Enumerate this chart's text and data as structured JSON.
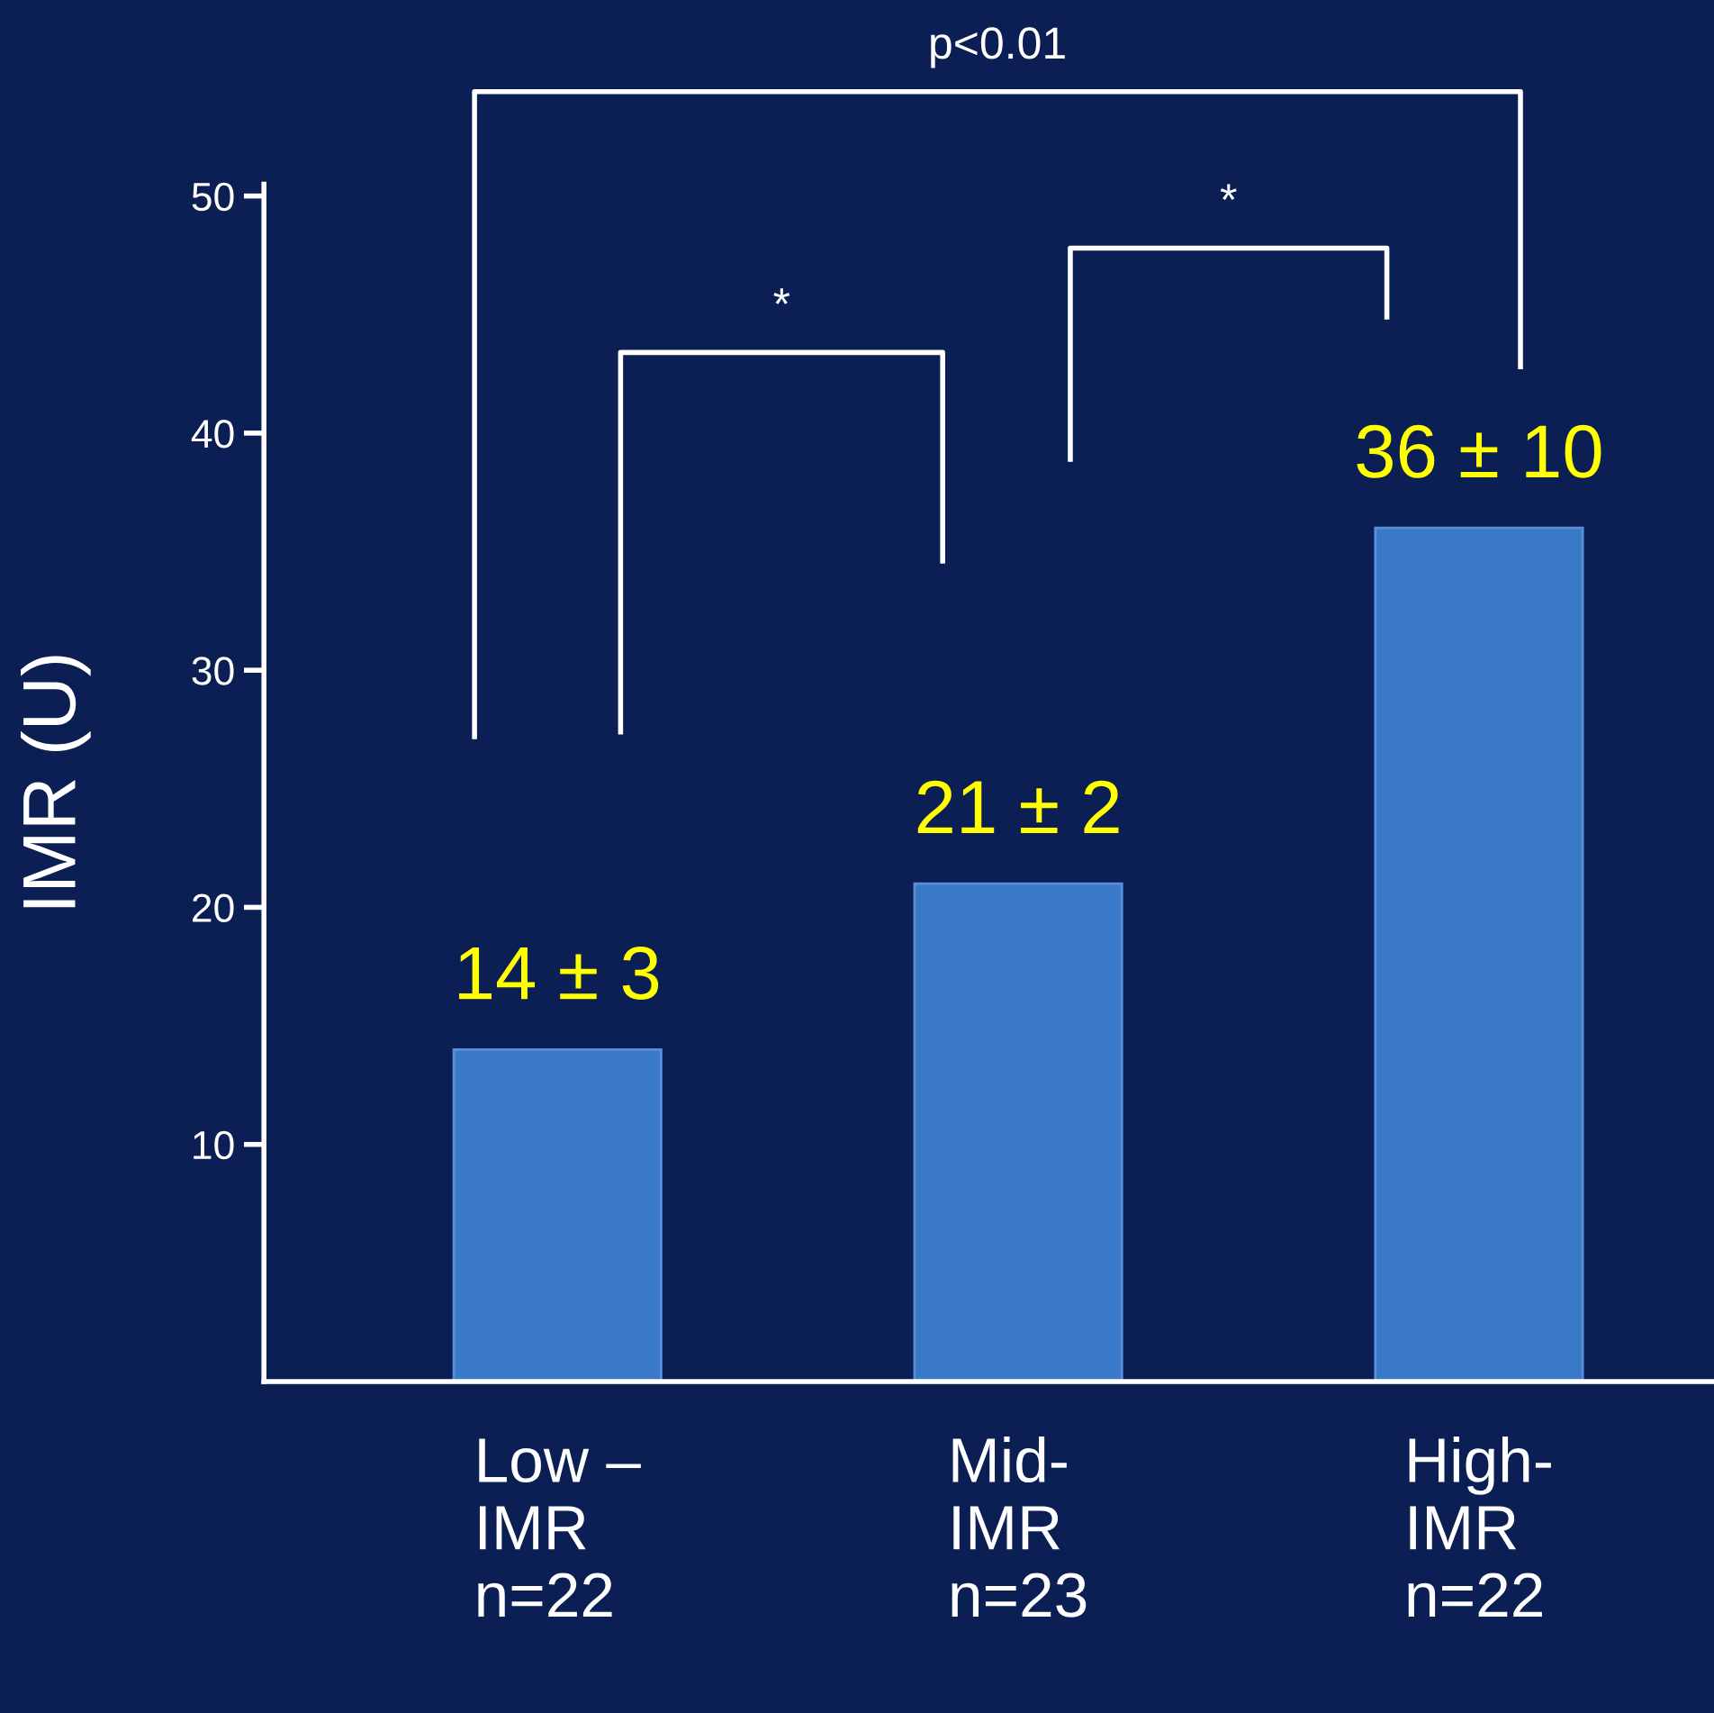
{
  "chart_data": {
    "type": "bar",
    "ylabel": "IMR (U)",
    "categories": [
      "Low –\nIMR\nn=22",
      "Mid-\nIMR\nn=23",
      "High-\nIMR\nn=22"
    ],
    "values": [
      14,
      21,
      36
    ],
    "value_labels": [
      "14 ± 3",
      "21 ± 2",
      "36 ± 10"
    ],
    "color": "#3a78c8",
    "ylim": [
      0,
      50.5
    ],
    "yticks": [
      10,
      20,
      30,
      40,
      50
    ],
    "grid": false,
    "annotations": [
      "p<0.01",
      "*",
      "*"
    ]
  }
}
